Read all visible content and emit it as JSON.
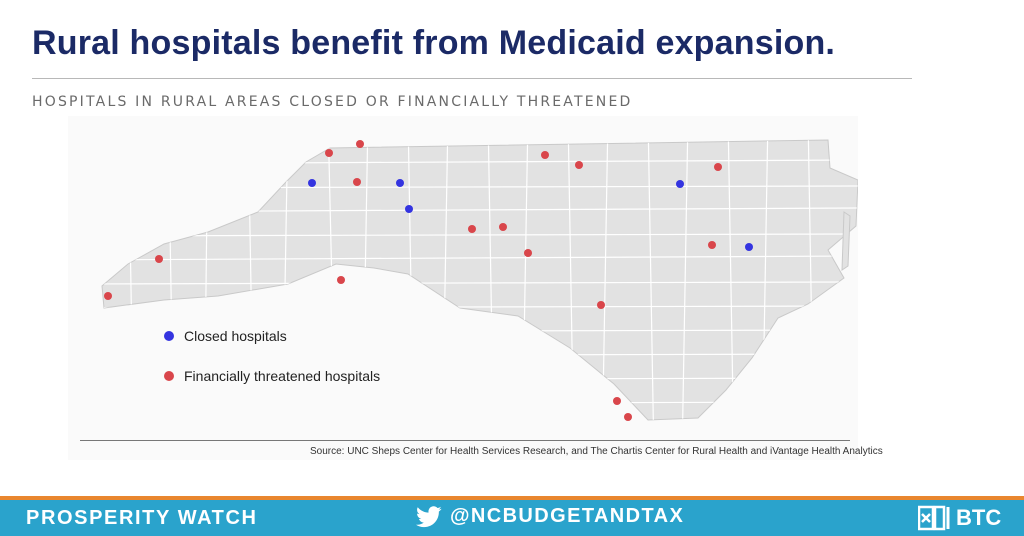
{
  "header": {
    "title": "Rural hospitals benefit from Medicaid expansion.",
    "subtitle": "HOSPITALS IN RURAL AREAS CLOSED OR FINANCIALLY THREATENED"
  },
  "map": {
    "region": "North Carolina counties",
    "base_color": "#e2e2e2",
    "border_color": "#ffffff",
    "markers": [
      {
        "type": "closed",
        "location": "northwest mountains"
      },
      {
        "type": "closed",
        "location": "northern foothills"
      },
      {
        "type": "closed",
        "location": "northern foothills (south)"
      },
      {
        "type": "closed",
        "location": "northeast"
      },
      {
        "type": "closed",
        "location": "eastern coastal plain"
      },
      {
        "type": "threatened",
        "location": "far west"
      },
      {
        "type": "threatened",
        "location": "western mountains"
      },
      {
        "type": "threatened",
        "location": "northwest mountains"
      },
      {
        "type": "threatened",
        "location": "northwest mountains (east)"
      },
      {
        "type": "threatened",
        "location": "northwest foothills"
      },
      {
        "type": "threatened",
        "location": "southern foothills"
      },
      {
        "type": "threatened",
        "location": "north-central border"
      },
      {
        "type": "threatened",
        "location": "north-central"
      },
      {
        "type": "threatened",
        "location": "northeast border"
      },
      {
        "type": "threatened",
        "location": "central piedmont"
      },
      {
        "type": "threatened",
        "location": "central piedmont (east)"
      },
      {
        "type": "threatened",
        "location": "central"
      },
      {
        "type": "threatened",
        "location": "eastern coastal plain"
      },
      {
        "type": "threatened",
        "location": "southeast"
      },
      {
        "type": "threatened",
        "location": "southeast coast"
      },
      {
        "type": "threatened",
        "location": "southeast coast (south)"
      }
    ]
  },
  "legend": {
    "closed": {
      "label": "Closed hospitals",
      "color": "#3434e0"
    },
    "threatened": {
      "label": "Financially threatened hospitals",
      "color": "#d9464b"
    }
  },
  "source": "Source: UNC Sheps Center for Health Services Research, and The Chartis Center for Rural Health and iVantage Health Analytics",
  "footer": {
    "left_label": "PROSPERITY WATCH",
    "twitter_icon": "twitter-bird-icon",
    "handle": "@NCBUDGETANDTAX",
    "logo_text": "BTC",
    "background_color": "#2aa3cc",
    "accent_color": "#e9862e"
  }
}
